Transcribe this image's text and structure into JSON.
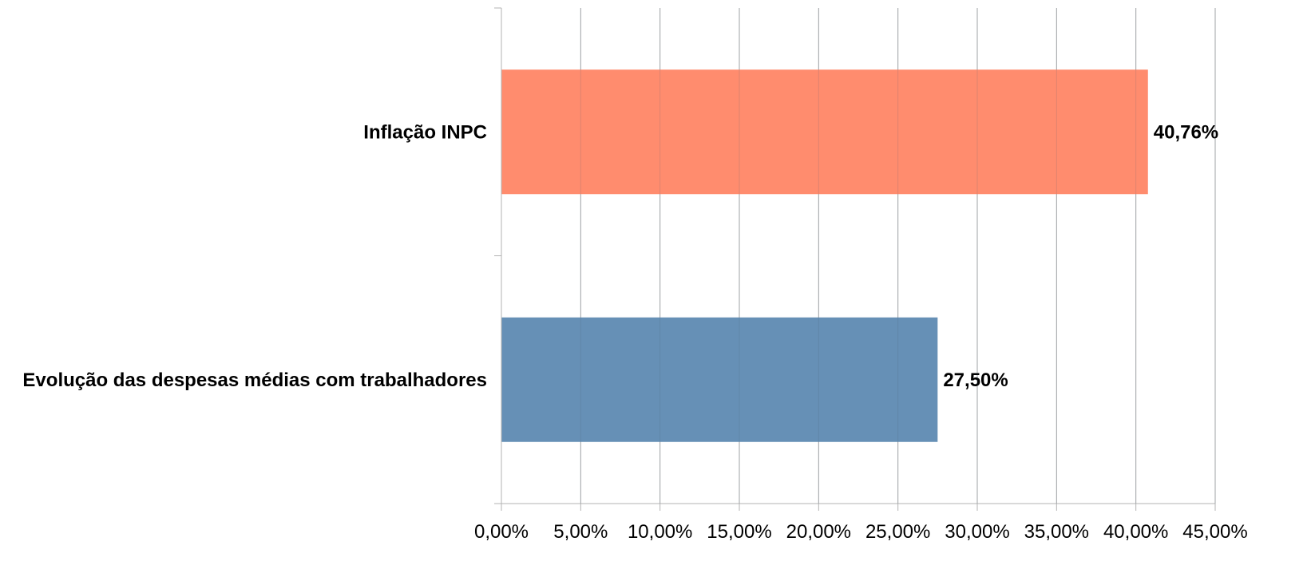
{
  "chart_data": {
    "type": "bar",
    "orientation": "horizontal",
    "categories": [
      "Inflação INPC",
      "Evolução das despesas médias com trabalhadores"
    ],
    "values": [
      40.76,
      27.5
    ],
    "value_labels": [
      "40,76%",
      "27,50%"
    ],
    "bar_colors": [
      "#ff8c6e",
      "#6690b6"
    ],
    "xlim": [
      0,
      45
    ],
    "x_ticks": [
      0,
      5,
      10,
      15,
      20,
      25,
      30,
      35,
      40,
      45
    ],
    "x_tick_labels": [
      "0,00%",
      "5,00%",
      "10,00%",
      "15,00%",
      "20,00%",
      "25,00%",
      "30,00%",
      "35,00%",
      "40,00%",
      "45,00%"
    ],
    "grid": true,
    "legend": "none",
    "title": "",
    "xlabel": "",
    "ylabel": ""
  }
}
